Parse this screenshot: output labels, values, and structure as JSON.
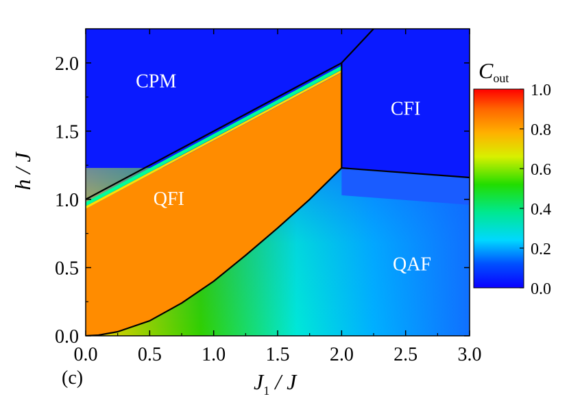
{
  "chart_data": {
    "type": "heatmap",
    "panel_label": "(c)",
    "xlabel": {
      "main": "J",
      "sub": "1",
      "rest": " / J"
    },
    "ylabel": "h / J",
    "xlim": [
      0.0,
      3.0
    ],
    "ylim": [
      0.0,
      2.25
    ],
    "x_ticks": [
      "0.0",
      "0.5",
      "1.0",
      "1.5",
      "2.0",
      "2.5",
      "3.0"
    ],
    "x_tick_values": [
      0.0,
      0.5,
      1.0,
      1.5,
      2.0,
      2.5,
      3.0
    ],
    "y_ticks": [
      "0.0",
      "0.5",
      "1.0",
      "1.5",
      "2.0"
    ],
    "y_tick_values": [
      0.0,
      0.5,
      1.0,
      1.5,
      2.0
    ],
    "colorbar": {
      "title_main": "C",
      "title_sub": "out",
      "range": [
        0.0,
        1.0
      ],
      "ticks": [
        "0.0",
        "0.2",
        "0.4",
        "0.6",
        "0.8",
        "1.0"
      ],
      "tick_values": [
        0.0,
        0.2,
        0.4,
        0.6,
        0.8,
        1.0
      ]
    },
    "regions": [
      {
        "name": "CPM",
        "value": 0.0,
        "x": 0.55,
        "y": 1.82
      },
      {
        "name": "CFI",
        "value": 0.0,
        "x": 2.5,
        "y": 1.62
      },
      {
        "name": "QFI",
        "value": 0.84,
        "x": 0.65,
        "y": 0.96
      },
      {
        "name": "QAF",
        "value": 0.2,
        "x": 2.55,
        "y": 0.48
      }
    ],
    "phase_boundaries": [
      {
        "name": "CPM-QFI",
        "points": [
          [
            0.0,
            1.0
          ],
          [
            2.0,
            2.0
          ]
        ]
      },
      {
        "name": "QFI-CFI",
        "points": [
          [
            2.0,
            1.23
          ],
          [
            2.0,
            2.0
          ]
        ]
      },
      {
        "name": "CPM-CFI",
        "points": [
          [
            2.0,
            2.0
          ],
          [
            2.25,
            2.25
          ]
        ]
      },
      {
        "name": "CFI-QAF",
        "points": [
          [
            2.0,
            1.23
          ],
          [
            3.0,
            1.16
          ]
        ]
      },
      {
        "name": "QFI-QAF",
        "points": [
          [
            0.0,
            0.0
          ],
          [
            0.1,
            0.005
          ],
          [
            0.25,
            0.03
          ],
          [
            0.5,
            0.11
          ],
          [
            0.75,
            0.24
          ],
          [
            1.0,
            0.4
          ],
          [
            1.25,
            0.59
          ],
          [
            1.5,
            0.79
          ],
          [
            1.75,
            1.0
          ],
          [
            2.0,
            1.23
          ]
        ]
      }
    ]
  },
  "colors": {
    "boundary": "#000000",
    "region_label": "#ffffff"
  }
}
